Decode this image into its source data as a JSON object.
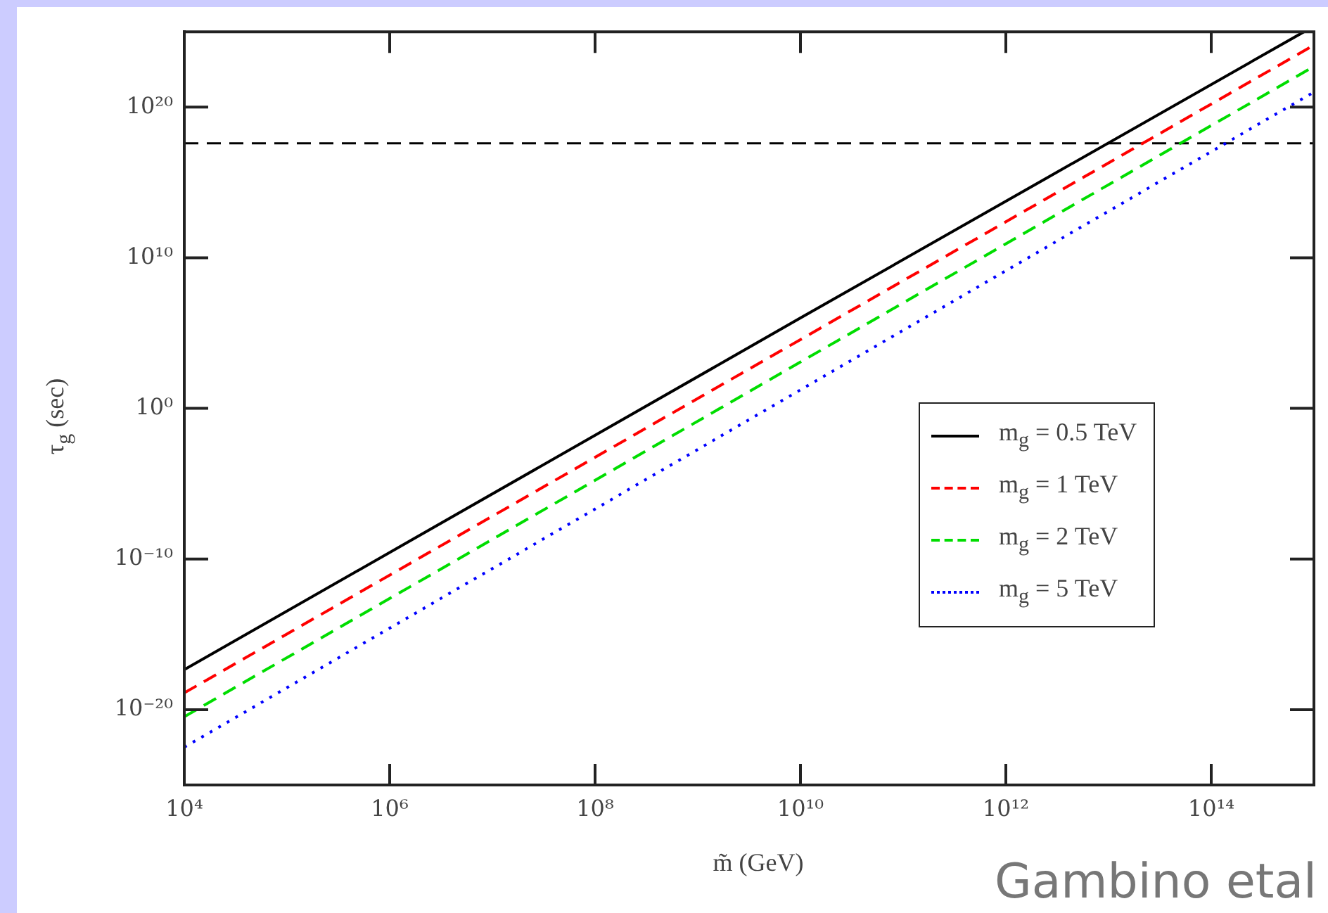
{
  "chart_data": {
    "type": "line",
    "xlabel": "m̃ (GeV)",
    "ylabel": "τ$_{g}$ (sec)",
    "log": "xy",
    "xlim": [
      10000.0,
      1000000000000000.0
    ],
    "ylim": [
      1e-25,
      1e+25
    ],
    "xticks": [
      {
        "value": 10000.0,
        "label": "10⁴"
      },
      {
        "value": 1000000.0,
        "label": "10⁶"
      },
      {
        "value": 100000000.0,
        "label": "10⁸"
      },
      {
        "value": 10000000000.0,
        "label": "10¹⁰"
      },
      {
        "value": 1000000000000.0,
        "label": "10¹²"
      },
      {
        "value": 100000000000000.0,
        "label": "10¹⁴"
      }
    ],
    "yticks": [
      {
        "value": 1e-20,
        "label": "10⁻²⁰"
      },
      {
        "value": 1e-10,
        "label": "10⁻¹⁰"
      },
      {
        "value": 1,
        "label": "10⁰"
      },
      {
        "value": 10000000000.0,
        "label": "10¹⁰"
      },
      {
        "value": 1e+20,
        "label": "10²⁰"
      }
    ],
    "series": [
      {
        "name": "m$_{g}$ = 0.5 TeV",
        "color": "#000000",
        "line_style": "solid",
        "x": [
          10000.0,
          10000000000.0,
          800000000000000.0
        ],
        "values": [
          4.5e-18,
          1000000.0,
          1e+25
        ]
      },
      {
        "name": "m$_{g}$ = 1 TeV",
        "color": "#ff0000",
        "line_style": "dashed",
        "x": [
          10000.0,
          1000000000000000.0
        ],
        "values": [
          1.3e-19,
          1.3e+24
        ]
      },
      {
        "name": "m$_{g}$ = 2 TeV",
        "color": "#00dd00",
        "line_style": "dashed",
        "x": [
          10000.0,
          1000000000000000.0
        ],
        "values": [
          3.4e-21,
          5e+22
        ]
      },
      {
        "name": "m$_{g}$ = 5 TeV",
        "color": "#0000ff",
        "line_style": "dotted",
        "x": [
          10000.0,
          1000000000000000.0
        ],
        "values": [
          3.2e-23,
          1e+21
        ]
      }
    ],
    "ref_lines": [
      {
        "axis": "y",
        "value": 4e+17,
        "color": "#000000",
        "line_style": "dashed"
      }
    ],
    "legend": "right",
    "grid": false,
    "marker": "none",
    "annotations": [
      "Gambino etal"
    ]
  }
}
